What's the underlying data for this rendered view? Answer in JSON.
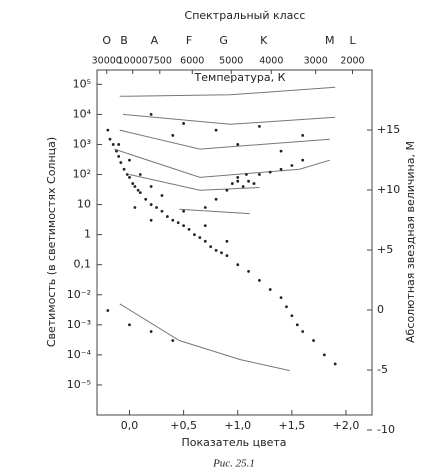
{
  "chart_data": {
    "type": "scatter",
    "title": "Спектральный класс",
    "spectral_classes": [
      {
        "value": -0.21,
        "label": "O"
      },
      {
        "value": -0.05,
        "label": "B"
      },
      {
        "value": 0.23,
        "label": "A"
      },
      {
        "value": 0.55,
        "label": "F"
      },
      {
        "value": 0.87,
        "label": "G"
      },
      {
        "value": 1.24,
        "label": "K"
      },
      {
        "value": 1.85,
        "label": "M"
      },
      {
        "value": 2.06,
        "label": "L"
      }
    ],
    "temperature_label": "Температура, К",
    "temperature_ticks": [
      {
        "value": -0.21,
        "label": "30000"
      },
      {
        "value": 0.03,
        "label": "10000"
      },
      {
        "value": 0.28,
        "label": "7500"
      },
      {
        "value": 0.58,
        "label": "6000"
      },
      {
        "value": 0.94,
        "label": "5000"
      },
      {
        "value": 1.31,
        "label": "4000"
      },
      {
        "value": 1.72,
        "label": "3000"
      },
      {
        "value": 2.06,
        "label": "2000"
      }
    ],
    "xlabel": "Показатель цвета",
    "ylabel": "Светимость (в светимостях Солнца)",
    "y2label": "Абсолютная звездная величина, М",
    "caption": "Рис. 25.1",
    "xlim": [
      -0.3,
      2.24
    ],
    "xticks": [
      {
        "value": 0,
        "label": "0,0"
      },
      {
        "value": 0.5,
        "label": "+0,5"
      },
      {
        "value": 1,
        "label": "+1,0"
      },
      {
        "value": 1.5,
        "label": "+1,5"
      },
      {
        "value": 2,
        "label": "+2,0"
      }
    ],
    "ylim": [
      1e-06,
      300000
    ],
    "yscale": "log",
    "yticks": [
      {
        "value": 100000,
        "label": "10⁵"
      },
      {
        "value": 10000,
        "label": "10⁴"
      },
      {
        "value": 1000,
        "label": "10³"
      },
      {
        "value": 100,
        "label": "10²"
      },
      10,
      1,
      {
        "value": 0.1,
        "label": "0,1"
      },
      {
        "value": 0.01,
        "label": "10⁻²"
      },
      {
        "value": 0.001,
        "label": "10⁻³"
      },
      {
        "value": 0.0001,
        "label": "10⁻⁴"
      },
      {
        "value": 1e-05,
        "label": "10⁻⁵"
      }
    ],
    "y2lim": [
      -8.75,
      20
    ],
    "y2ticks": [
      -10,
      -5,
      0,
      {
        "value": 5,
        "label": "+5"
      },
      {
        "value": 10,
        "label": "+10"
      },
      {
        "value": 15,
        "label": "+15"
      }
    ],
    "color": "#222222",
    "curve_color": "#777777",
    "x": [
      -0.2,
      -0.18,
      -0.15,
      -0.12,
      -0.1,
      -0.08,
      -0.05,
      -0.02,
      0,
      0.03,
      0.05,
      0.08,
      0.1,
      0.15,
      0.2,
      0.25,
      0.3,
      0.35,
      0.4,
      0.45,
      0.5,
      0.55,
      0.6,
      0.65,
      0.7,
      0.75,
      0.8,
      0.85,
      0.9,
      1.0,
      1.1,
      1.2,
      1.3,
      1.4,
      1.45,
      1.5,
      1.55,
      1.6,
      1.7,
      1.8,
      1.9,
      -0.1,
      0,
      0.1,
      0.2,
      0.3,
      0.5,
      0.7,
      0.9,
      0.05,
      0.2,
      0.7,
      0.8,
      0.9,
      0.95,
      1.0,
      1.05,
      1.1,
      1.15,
      1.2,
      1.3,
      1.4,
      1.5,
      1.6,
      1.0,
      1.08,
      0.2,
      0.5,
      0.8,
      1.2,
      1.6,
      0.4,
      1.0,
      1.4,
      -0.2,
      0,
      0.2,
      0.4
    ],
    "values": [
      3000,
      1500,
      1000,
      600,
      400,
      250,
      150,
      100,
      80,
      50,
      40,
      30,
      25,
      15,
      10,
      8,
      6,
      4,
      3,
      2.5,
      2,
      1.5,
      1,
      0.8,
      0.6,
      0.4,
      0.3,
      0.25,
      0.2,
      0.1,
      0.06,
      0.03,
      0.015,
      0.008,
      0.004,
      0.002,
      0.001,
      0.0006,
      0.0003,
      0.0001,
      5e-05,
      1000,
      300,
      100,
      40,
      20,
      6,
      2,
      0.6,
      8,
      3,
      8,
      15,
      30,
      50,
      80,
      40,
      60,
      50,
      100,
      120,
      150,
      200,
      300,
      60,
      100,
      10000,
      5000,
      3000,
      4000,
      2000,
      2000,
      1000,
      600,
      0.003,
      0.001,
      0.0006,
      0.0003
    ],
    "curves": [
      {
        "x": [
          -0.09,
          0.93,
          1.9
        ],
        "values": [
          40000,
          45000,
          80000
        ]
      },
      {
        "x": [
          -0.06,
          0.93,
          1.9
        ],
        "values": [
          10000,
          4700,
          8000
        ]
      },
      {
        "x": [
          -0.09,
          0.65,
          1.85
        ],
        "values": [
          3000,
          700,
          1500
        ]
      },
      {
        "x": [
          -0.14,
          0.65,
          1.57,
          1.85
        ],
        "values": [
          700,
          80,
          150,
          300
        ]
      },
      {
        "x": [
          0,
          0.65,
          1.2
        ],
        "values": [
          100,
          30,
          37
        ]
      },
      {
        "x": [
          0.46,
          1.11
        ],
        "values": [
          7,
          5
        ]
      },
      {
        "x": [
          -0.09,
          0.46,
          1.02,
          1.48
        ],
        "values": [
          0.005,
          0.0003,
          7e-05,
          3e-05
        ]
      }
    ]
  }
}
